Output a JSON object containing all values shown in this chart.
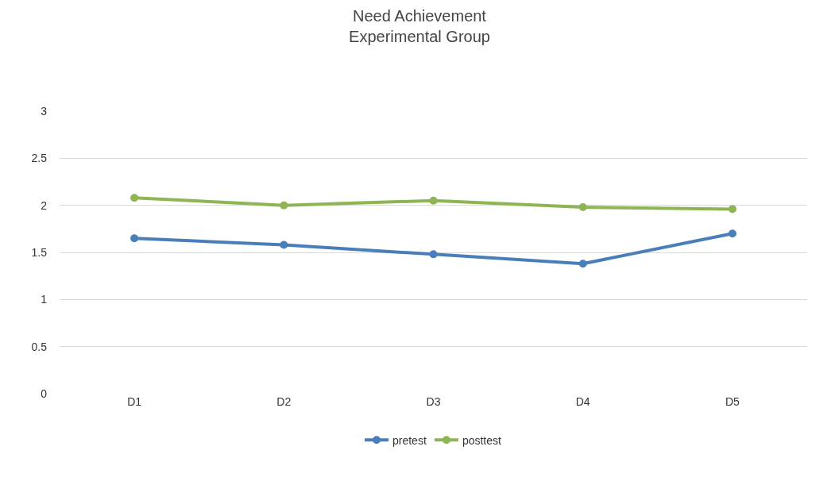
{
  "chart_data": {
    "type": "line",
    "title": "Need Achievement",
    "subtitle": "Experimental Group",
    "categories": [
      "D1",
      "D2",
      "D3",
      "D4",
      "D5"
    ],
    "series": [
      {
        "name": "pretest",
        "color": "#4a7ebb",
        "values": [
          1.65,
          1.58,
          1.48,
          1.38,
          1.7
        ]
      },
      {
        "name": "posttest",
        "color": "#8db554",
        "values": [
          2.08,
          2.0,
          2.05,
          1.98,
          1.96
        ]
      }
    ],
    "ylim": [
      0,
      3
    ],
    "yticks": [
      0,
      {
        "value": 0.5,
        "label": "0.5"
      },
      1,
      {
        "value": 1.5,
        "label": "1.5"
      },
      2,
      {
        "value": 2.5,
        "label": "2.5"
      },
      3
    ],
    "grid": "y",
    "legend": "bottom",
    "marker": "circle",
    "line_style": "solid"
  }
}
